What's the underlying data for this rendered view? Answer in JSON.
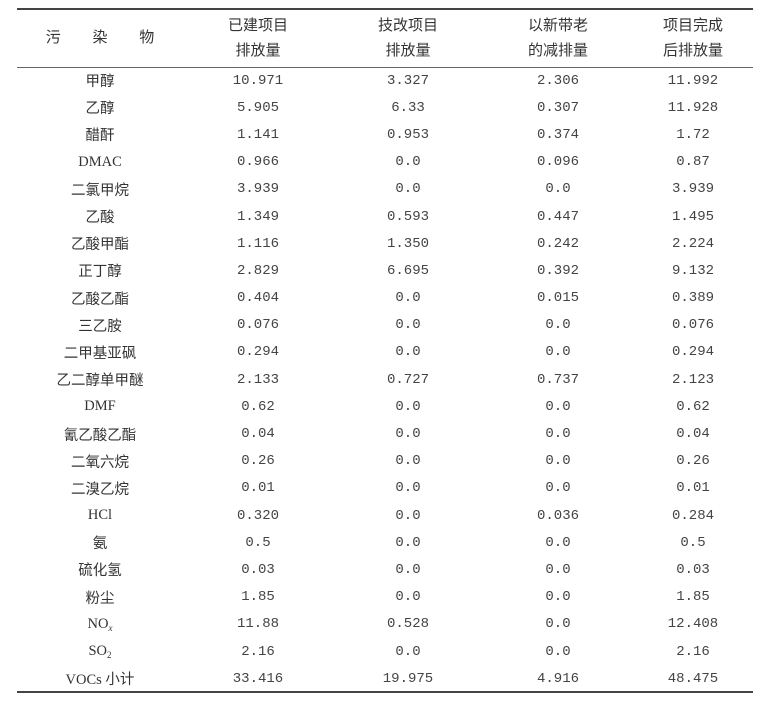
{
  "table": {
    "headers": [
      {
        "lines": [
          "污 染 物"
        ]
      },
      {
        "lines": [
          "已建项目",
          "排放量"
        ]
      },
      {
        "lines": [
          "技改项目",
          "排放量"
        ]
      },
      {
        "lines": [
          "以新带老",
          "的减排量"
        ]
      },
      {
        "lines": [
          "项目完成",
          "后排放量"
        ]
      }
    ],
    "rows": [
      {
        "name": "甲醇",
        "sub": "",
        "values": [
          "10.971",
          "3.327",
          "2.306",
          "11.992"
        ]
      },
      {
        "name": "乙醇",
        "sub": "",
        "values": [
          "5.905",
          "6.33",
          "0.307",
          "11.928"
        ]
      },
      {
        "name": "醋酐",
        "sub": "",
        "values": [
          "1.141",
          "0.953",
          "0.374",
          "1.72"
        ]
      },
      {
        "name": "DMAC",
        "sub": "",
        "values": [
          "0.966",
          "0.0",
          "0.096",
          "0.87"
        ]
      },
      {
        "name": "二氯甲烷",
        "sub": "",
        "values": [
          "3.939",
          "0.0",
          "0.0",
          "3.939"
        ]
      },
      {
        "name": "乙酸",
        "sub": "",
        "values": [
          "1.349",
          "0.593",
          "0.447",
          "1.495"
        ]
      },
      {
        "name": "乙酸甲酯",
        "sub": "",
        "values": [
          "1.116",
          "1.350",
          "0.242",
          "2.224"
        ]
      },
      {
        "name": "正丁醇",
        "sub": "",
        "values": [
          "2.829",
          "6.695",
          "0.392",
          "9.132"
        ]
      },
      {
        "name": "乙酸乙酯",
        "sub": "",
        "values": [
          "0.404",
          "0.0",
          "0.015",
          "0.389"
        ]
      },
      {
        "name": "三乙胺",
        "sub": "",
        "values": [
          "0.076",
          "0.0",
          "0.0",
          "0.076"
        ]
      },
      {
        "name": "二甲基亚砜",
        "sub": "",
        "values": [
          "0.294",
          "0.0",
          "0.0",
          "0.294"
        ]
      },
      {
        "name": "乙二醇单甲醚",
        "sub": "",
        "values": [
          "2.133",
          "0.727",
          "0.737",
          "2.123"
        ]
      },
      {
        "name": "DMF",
        "sub": "",
        "values": [
          "0.62",
          "0.0",
          "0.0",
          "0.62"
        ]
      },
      {
        "name": "氰乙酸乙酯",
        "sub": "",
        "values": [
          "0.04",
          "0.0",
          "0.0",
          "0.04"
        ]
      },
      {
        "name": "二氧六烷",
        "sub": "",
        "values": [
          "0.26",
          "0.0",
          "0.0",
          "0.26"
        ]
      },
      {
        "name": "二溴乙烷",
        "sub": "",
        "values": [
          "0.01",
          "0.0",
          "0.0",
          "0.01"
        ]
      },
      {
        "name": "HCl",
        "sub": "",
        "values": [
          "0.320",
          "0.0",
          "0.036",
          "0.284"
        ]
      },
      {
        "name": "氨",
        "sub": "",
        "values": [
          "0.5",
          "0.0",
          "0.0",
          "0.5"
        ]
      },
      {
        "name": "硫化氢",
        "sub": "",
        "values": [
          "0.03",
          "0.0",
          "0.0",
          "0.03"
        ]
      },
      {
        "name": "粉尘",
        "sub": "",
        "values": [
          "1.85",
          "0.0",
          "0.0",
          "1.85"
        ]
      },
      {
        "name": "NO",
        "sub": "x",
        "values": [
          "11.88",
          "0.528",
          "0.0",
          "12.408"
        ]
      },
      {
        "name": "SO",
        "sub": "2",
        "values": [
          "2.16",
          "0.0",
          "0.0",
          "2.16"
        ]
      },
      {
        "name": "VOCs 小计",
        "sub": "",
        "values": [
          "33.416",
          "19.975",
          "4.916",
          "48.475"
        ]
      }
    ]
  }
}
